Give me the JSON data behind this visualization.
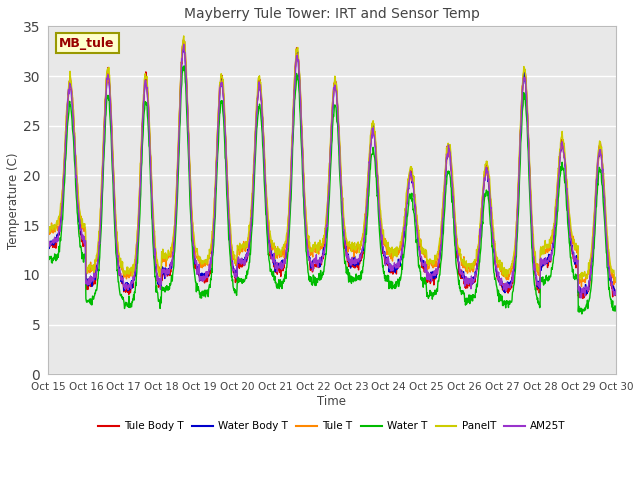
{
  "title": "Mayberry Tule Tower: IRT and Sensor Temp",
  "xlabel": "Time",
  "ylabel": "Temperature (C)",
  "ylim": [
    0,
    35
  ],
  "xlim": [
    0,
    360
  ],
  "yticks": [
    0,
    5,
    10,
    15,
    20,
    25,
    30,
    35
  ],
  "xtick_labels": [
    "Oct 15",
    "Oct 16",
    "Oct 17",
    "Oct 18",
    "Oct 19",
    "Oct 20",
    "Oct 21",
    "Oct 22",
    "Oct 23",
    "Oct 24",
    "Oct 25",
    "Oct 26",
    "Oct 27",
    "Oct 28",
    "Oct 29",
    "Oct 30"
  ],
  "xtick_positions": [
    0,
    24,
    48,
    72,
    96,
    120,
    144,
    168,
    192,
    216,
    240,
    264,
    288,
    312,
    336,
    360
  ],
  "plot_bg_color": "#e8e8e8",
  "fig_bg_color": "#ffffff",
  "grid_color": "#ffffff",
  "series": {
    "Tule Body T": {
      "color": "#dd0000",
      "lw": 1.0
    },
    "Water Body T": {
      "color": "#0000cc",
      "lw": 1.0
    },
    "Tule T": {
      "color": "#ff8800",
      "lw": 1.0
    },
    "Water T": {
      "color": "#00bb00",
      "lw": 1.0
    },
    "PanelT": {
      "color": "#cccc00",
      "lw": 1.0
    },
    "AM25T": {
      "color": "#9933cc",
      "lw": 1.0
    }
  },
  "watermark": "MB_tule",
  "day_peaks": [
    29.5,
    30.5,
    30.0,
    33.5,
    30.0,
    29.5,
    32.5,
    29.5,
    25.0,
    20.5,
    23.0,
    21.0,
    30.5,
    23.5,
    23.0
  ],
  "day_mins": [
    13.0,
    9.0,
    8.5,
    10.0,
    9.5,
    11.0,
    10.5,
    11.0,
    11.0,
    10.5,
    9.5,
    9.0,
    8.5,
    11.0,
    8.0
  ]
}
